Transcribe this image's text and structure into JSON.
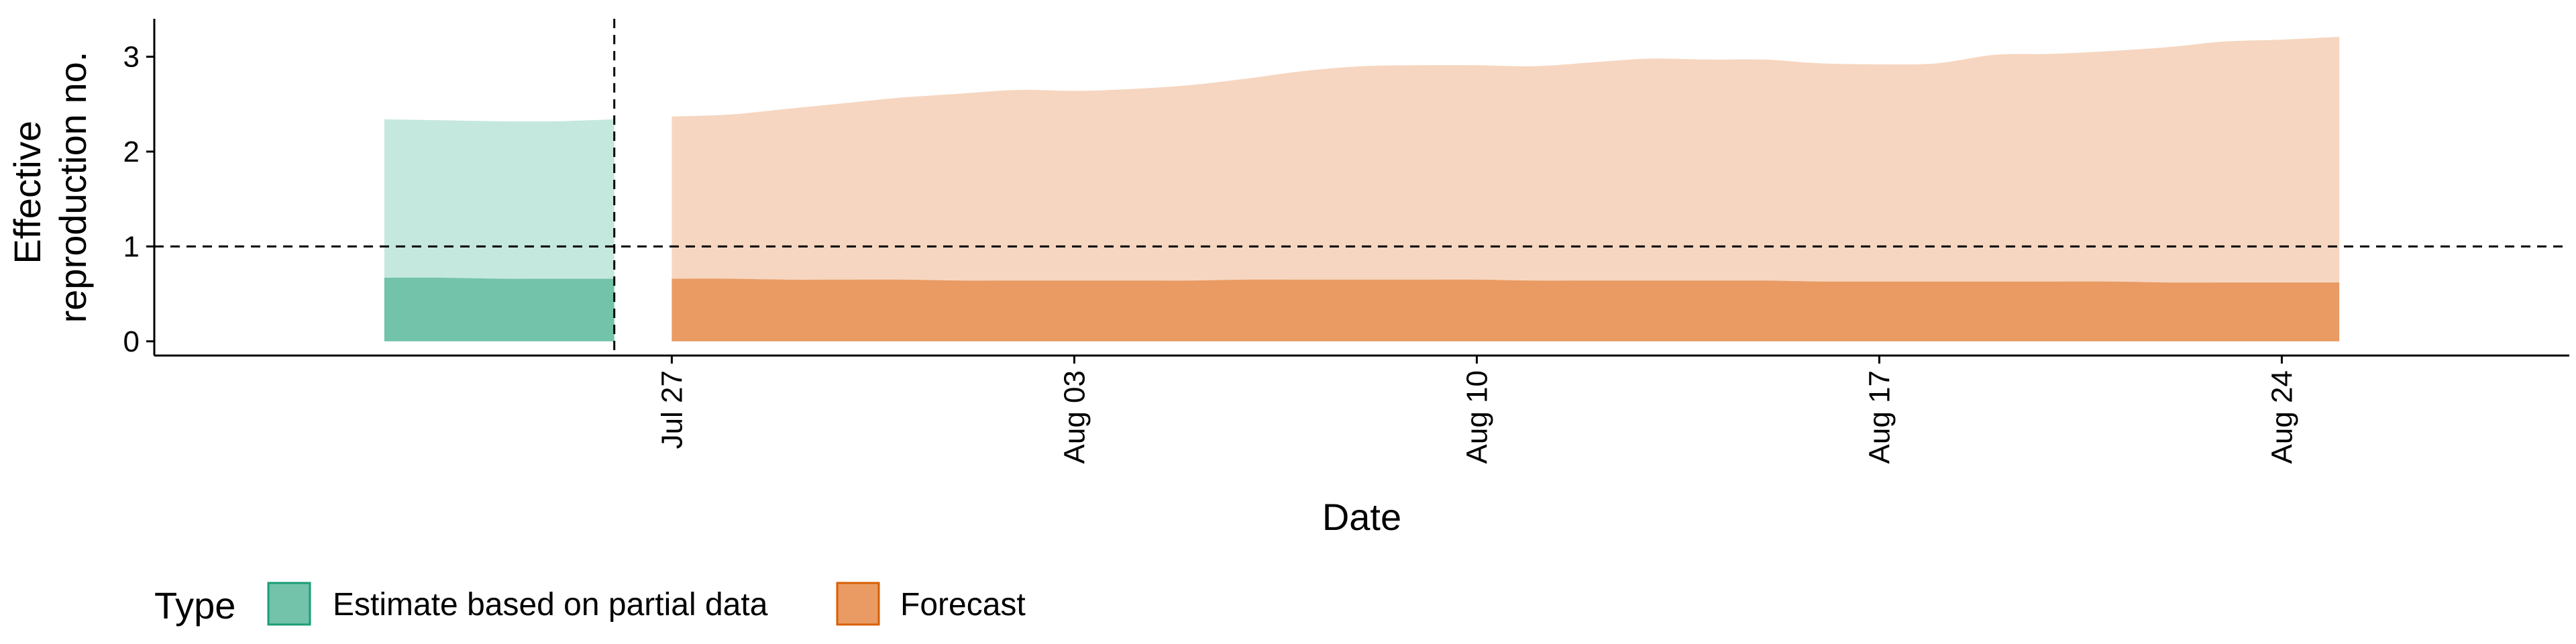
{
  "chart_data": {
    "type": "area",
    "title": "",
    "xlabel": "Date",
    "ylabel_lines": [
      "Effective",
      "reproduction no."
    ],
    "x_range": [
      "2024-07-18",
      "2024-08-29"
    ],
    "x_ticks": [
      "2024-07-27",
      "2024-08-03",
      "2024-08-10",
      "2024-08-17",
      "2024-08-24"
    ],
    "x_tick_labels": [
      "Jul 27",
      "Aug 03",
      "Aug 10",
      "Aug 17",
      "Aug 24"
    ],
    "ylim": [
      -0.15,
      3.4
    ],
    "y_ticks": [
      0,
      1,
      2,
      3
    ],
    "y_tick_labels": [
      "0",
      "1",
      "2",
      "3"
    ],
    "grid": false,
    "reference_lines": {
      "horizontal_y": 1,
      "vertical_x": "2024-07-26"
    },
    "legend": {
      "title": "Type",
      "position": "bottom-left",
      "entries": [
        "Estimate based on partial data",
        "Forecast"
      ]
    },
    "colors": {
      "estimate_inner": "#72c3aa",
      "estimate_outer": "#c5e8de",
      "estimate_border": "#1b9e77",
      "forecast_inner": "#e99b63",
      "forecast_outer": "#f6d6c0",
      "forecast_border": "#d95f02"
    },
    "series": [
      {
        "name": "Estimate based on partial data",
        "points": [
          {
            "x": "2024-07-22",
            "outer_upper": 2.34,
            "inner_upper": 0.67,
            "lower": 0
          },
          {
            "x": "2024-07-23",
            "outer_upper": 2.33,
            "inner_upper": 0.67,
            "lower": 0
          },
          {
            "x": "2024-07-24",
            "outer_upper": 2.32,
            "inner_upper": 0.66,
            "lower": 0
          },
          {
            "x": "2024-07-25",
            "outer_upper": 2.32,
            "inner_upper": 0.66,
            "lower": 0
          },
          {
            "x": "2024-07-26",
            "outer_upper": 2.34,
            "inner_upper": 0.66,
            "lower": 0
          }
        ]
      },
      {
        "name": "Forecast",
        "points": [
          {
            "x": "2024-07-27",
            "outer_upper": 2.37,
            "inner_upper": 0.66,
            "lower": 0
          },
          {
            "x": "2024-07-28",
            "outer_upper": 2.39,
            "inner_upper": 0.66,
            "lower": 0
          },
          {
            "x": "2024-07-29",
            "outer_upper": 2.45,
            "inner_upper": 0.65,
            "lower": 0
          },
          {
            "x": "2024-07-30",
            "outer_upper": 2.51,
            "inner_upper": 0.65,
            "lower": 0
          },
          {
            "x": "2024-07-31",
            "outer_upper": 2.57,
            "inner_upper": 0.65,
            "lower": 0
          },
          {
            "x": "2024-08-01",
            "outer_upper": 2.61,
            "inner_upper": 0.64,
            "lower": 0
          },
          {
            "x": "2024-08-02",
            "outer_upper": 2.65,
            "inner_upper": 0.64,
            "lower": 0
          },
          {
            "x": "2024-08-03",
            "outer_upper": 2.64,
            "inner_upper": 0.64,
            "lower": 0
          },
          {
            "x": "2024-08-04",
            "outer_upper": 2.66,
            "inner_upper": 0.64,
            "lower": 0
          },
          {
            "x": "2024-08-05",
            "outer_upper": 2.7,
            "inner_upper": 0.64,
            "lower": 0
          },
          {
            "x": "2024-08-06",
            "outer_upper": 2.77,
            "inner_upper": 0.65,
            "lower": 0
          },
          {
            "x": "2024-08-07",
            "outer_upper": 2.85,
            "inner_upper": 0.65,
            "lower": 0
          },
          {
            "x": "2024-08-08",
            "outer_upper": 2.9,
            "inner_upper": 0.65,
            "lower": 0
          },
          {
            "x": "2024-08-09",
            "outer_upper": 2.91,
            "inner_upper": 0.65,
            "lower": 0
          },
          {
            "x": "2024-08-10",
            "outer_upper": 2.91,
            "inner_upper": 0.65,
            "lower": 0
          },
          {
            "x": "2024-08-11",
            "outer_upper": 2.9,
            "inner_upper": 0.64,
            "lower": 0
          },
          {
            "x": "2024-08-12",
            "outer_upper": 2.94,
            "inner_upper": 0.64,
            "lower": 0
          },
          {
            "x": "2024-08-13",
            "outer_upper": 2.98,
            "inner_upper": 0.64,
            "lower": 0
          },
          {
            "x": "2024-08-14",
            "outer_upper": 2.97,
            "inner_upper": 0.64,
            "lower": 0
          },
          {
            "x": "2024-08-15",
            "outer_upper": 2.97,
            "inner_upper": 0.64,
            "lower": 0
          },
          {
            "x": "2024-08-16",
            "outer_upper": 2.93,
            "inner_upper": 0.63,
            "lower": 0
          },
          {
            "x": "2024-08-17",
            "outer_upper": 2.92,
            "inner_upper": 0.63,
            "lower": 0
          },
          {
            "x": "2024-08-18",
            "outer_upper": 2.93,
            "inner_upper": 0.63,
            "lower": 0
          },
          {
            "x": "2024-08-19",
            "outer_upper": 3.02,
            "inner_upper": 0.63,
            "lower": 0
          },
          {
            "x": "2024-08-20",
            "outer_upper": 3.03,
            "inner_upper": 0.63,
            "lower": 0
          },
          {
            "x": "2024-08-21",
            "outer_upper": 3.06,
            "inner_upper": 0.63,
            "lower": 0
          },
          {
            "x": "2024-08-22",
            "outer_upper": 3.1,
            "inner_upper": 0.62,
            "lower": 0
          },
          {
            "x": "2024-08-23",
            "outer_upper": 3.16,
            "inner_upper": 0.62,
            "lower": 0
          },
          {
            "x": "2024-08-24",
            "outer_upper": 3.18,
            "inner_upper": 0.62,
            "lower": 0
          },
          {
            "x": "2024-08-25",
            "outer_upper": 3.21,
            "inner_upper": 0.62,
            "lower": 0
          }
        ]
      }
    ]
  }
}
